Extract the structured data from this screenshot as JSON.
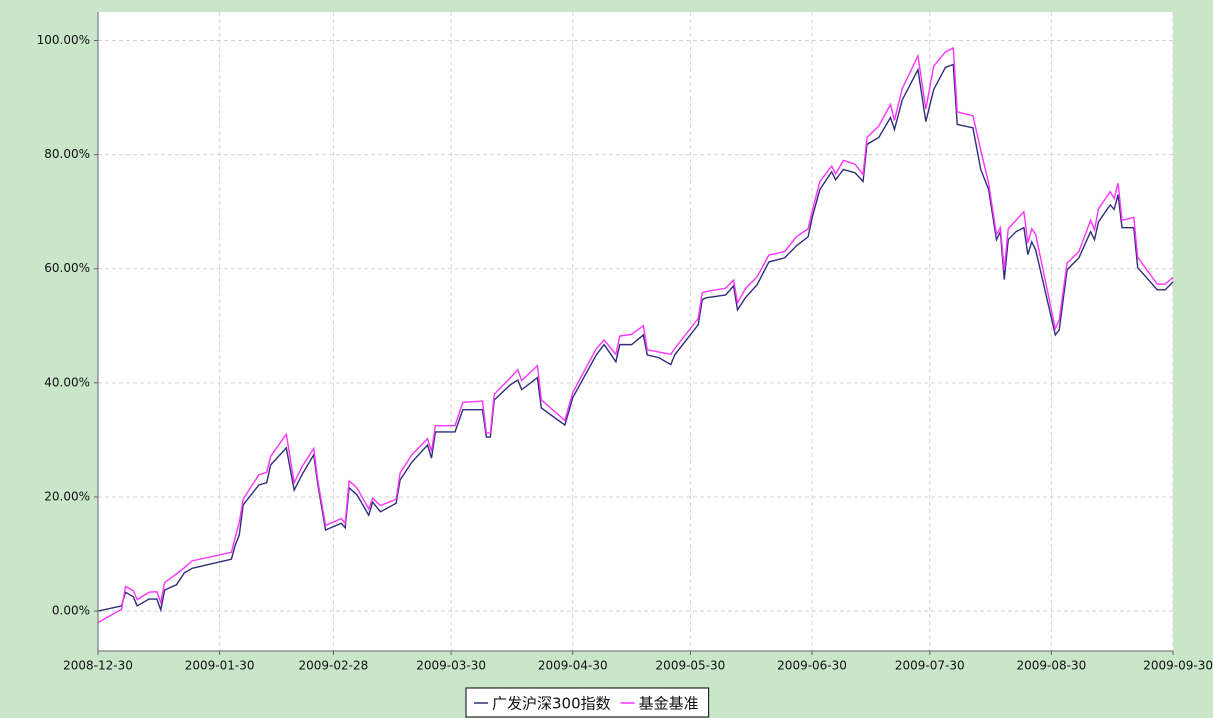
{
  "chart_data": {
    "type": "line",
    "x": [
      "2008-12-30",
      "2009-01-05",
      "2009-01-06",
      "2009-01-08",
      "2009-01-09",
      "2009-01-12",
      "2009-01-14",
      "2009-01-15",
      "2009-01-16",
      "2009-01-19",
      "2009-01-21",
      "2009-01-23",
      "2009-02-02",
      "2009-02-03",
      "2009-02-04",
      "2009-02-05",
      "2009-02-09",
      "2009-02-11",
      "2009-02-12",
      "2009-02-16",
      "2009-02-18",
      "2009-02-20",
      "2009-02-23",
      "2009-02-24",
      "2009-02-26",
      "2009-03-02",
      "2009-03-03",
      "2009-03-04",
      "2009-03-06",
      "2009-03-09",
      "2009-03-10",
      "2009-03-12",
      "2009-03-16",
      "2009-03-17",
      "2009-03-20",
      "2009-03-24",
      "2009-03-25",
      "2009-03-26",
      "2009-03-31",
      "2009-04-02",
      "2009-04-07",
      "2009-04-08",
      "2009-04-09",
      "2009-04-10",
      "2009-04-14",
      "2009-04-16",
      "2009-04-17",
      "2009-04-21",
      "2009-04-22",
      "2009-04-28",
      "2009-04-30",
      "2009-05-06",
      "2009-05-08",
      "2009-05-11",
      "2009-05-12",
      "2009-05-15",
      "2009-05-18",
      "2009-05-19",
      "2009-05-22",
      "2009-05-25",
      "2009-05-26",
      "2009-06-01",
      "2009-06-02",
      "2009-06-03",
      "2009-06-08",
      "2009-06-10",
      "2009-06-11",
      "2009-06-13",
      "2009-06-16",
      "2009-06-19",
      "2009-06-23",
      "2009-06-26",
      "2009-06-29",
      "2009-06-30",
      "2009-07-02",
      "2009-07-05",
      "2009-07-06",
      "2009-07-08",
      "2009-07-11",
      "2009-07-13",
      "2009-07-14",
      "2009-07-17",
      "2009-07-20",
      "2009-07-21",
      "2009-07-23",
      "2009-07-27",
      "2009-07-29",
      "2009-07-31",
      "2009-08-03",
      "2009-08-05",
      "2009-08-06",
      "2009-08-10",
      "2009-08-12",
      "2009-08-14",
      "2009-08-16",
      "2009-08-17",
      "2009-08-18",
      "2009-08-19",
      "2009-08-21",
      "2009-08-23",
      "2009-08-24",
      "2009-08-25",
      "2009-08-26",
      "2009-08-31",
      "2009-09-01",
      "2009-09-03",
      "2009-09-06",
      "2009-09-09",
      "2009-09-10",
      "2009-09-11",
      "2009-09-14",
      "2009-09-15",
      "2009-09-16",
      "2009-09-17",
      "2009-09-20",
      "2009-09-21",
      "2009-09-26",
      "2009-09-28",
      "2009-09-30"
    ],
    "series": [
      {
        "name": "广发沪深300指数",
        "color": "#2e2e7a",
        "values": [
          0,
          0.9,
          3.3,
          2.5,
          0.9,
          2.1,
          2.1,
          0.2,
          3.7,
          4.6,
          6.7,
          7.5,
          9.1,
          11.6,
          13.3,
          18.6,
          22.1,
          22.5,
          25.6,
          28.6,
          21.2,
          23.9,
          27.4,
          22.3,
          14.2,
          15.4,
          14.6,
          21.6,
          20.4,
          16.8,
          19.1,
          17.4,
          18.9,
          23.0,
          26.1,
          29.1,
          26.8,
          31.4,
          31.4,
          35.3,
          35.3,
          30.5,
          30.5,
          37.0,
          39.6,
          40.5,
          38.8,
          40.9,
          35.6,
          32.6,
          37.4,
          44.9,
          46.7,
          43.7,
          46.7,
          46.7,
          48.4,
          44.9,
          44.4,
          43.2,
          44.9,
          50.2,
          54.6,
          54.9,
          55.4,
          57.0,
          52.8,
          54.9,
          57.2,
          61.2,
          61.9,
          64.0,
          65.6,
          68.9,
          73.9,
          77.0,
          75.6,
          77.4,
          76.8,
          75.3,
          81.8,
          83.0,
          86.5,
          84.4,
          89.6,
          94.9,
          85.8,
          91.4,
          95.3,
          95.8,
          85.3,
          84.7,
          77.4,
          73.9,
          65.1,
          66.5,
          58.1,
          65.1,
          66.5,
          67.2,
          62.5,
          64.7,
          63.3,
          48.4,
          49.3,
          59.8,
          61.9,
          66.5,
          65.1,
          68.2,
          71.2,
          70.4,
          73.0,
          67.2,
          67.2,
          60.2,
          56.3,
          56.3,
          57.7
        ]
      },
      {
        "name": "基金基准",
        "color": "#ff33ff",
        "values": [
          -2,
          0.3,
          4.3,
          3.6,
          2.0,
          3.3,
          3.4,
          1.5,
          5.0,
          6.5,
          7.6,
          8.8,
          10.3,
          13.0,
          15.5,
          19.6,
          23.9,
          24.3,
          27.1,
          31.0,
          22.5,
          25.3,
          28.5,
          23.0,
          15.0,
          16.2,
          15.4,
          22.8,
          21.6,
          17.9,
          19.8,
          18.5,
          19.6,
          24.2,
          27.4,
          30.2,
          28.0,
          32.5,
          32.5,
          36.6,
          36.8,
          31.2,
          31.2,
          38.0,
          40.8,
          42.3,
          40.4,
          43.0,
          37.0,
          33.4,
          38.3,
          46.0,
          47.5,
          45.0,
          48.2,
          48.5,
          50.0,
          45.8,
          45.4,
          45.0,
          46.0,
          51.3,
          55.8,
          56.0,
          56.6,
          58.0,
          54.0,
          56.5,
          58.6,
          62.4,
          63.0,
          65.6,
          67.0,
          70.0,
          75.3,
          78.0,
          76.6,
          79.0,
          78.3,
          76.5,
          83.0,
          85.0,
          88.8,
          86.0,
          91.6,
          97.3,
          88.0,
          95.5,
          98.0,
          98.7,
          87.5,
          86.8,
          80.8,
          75.0,
          66.0,
          67.2,
          59.8,
          67.0,
          68.5,
          70.0,
          64.5,
          67.0,
          66.0,
          49.5,
          51.0,
          61.0,
          63.0,
          68.5,
          66.8,
          70.5,
          73.5,
          72.3,
          75.0,
          68.5,
          69.0,
          62.0,
          57.3,
          57.3,
          58.5
        ]
      }
    ],
    "xlim": [
      "2008-12-30",
      "2009-09-30"
    ],
    "xticks": [
      "2008-12-30",
      "2009-01-30",
      "2009-02-28",
      "2009-03-30",
      "2009-04-30",
      "2009-05-30",
      "2009-06-30",
      "2009-07-30",
      "2009-08-30",
      "2009-09-30"
    ],
    "ylim": [
      -7,
      105
    ],
    "yticks": [
      {
        "value": 0,
        "label": "0.00%"
      },
      {
        "value": 20,
        "label": "20.00%"
      },
      {
        "value": 40,
        "label": "40.00%"
      },
      {
        "value": 60,
        "label": "60.00%"
      },
      {
        "value": 80,
        "label": "80.00%"
      },
      {
        "value": 100,
        "label": "100.00%"
      }
    ],
    "grid": true,
    "legend": "bottom"
  }
}
